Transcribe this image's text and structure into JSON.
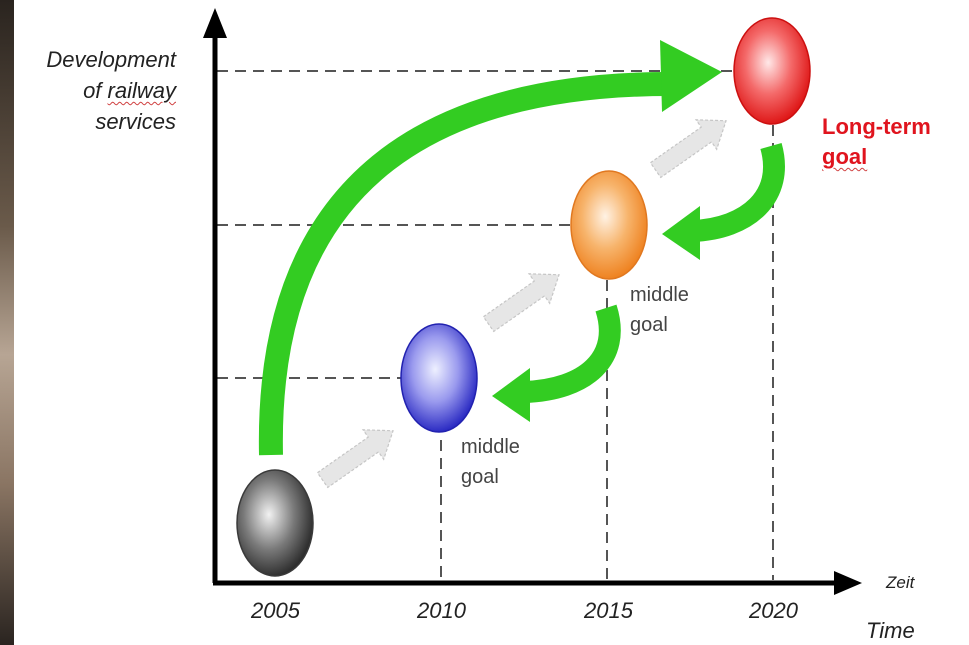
{
  "y_axis_label": [
    "Development",
    "of railway",
    "services"
  ],
  "x_axis_years": [
    "2005",
    "2010",
    "2015",
    "2020"
  ],
  "x_axis_label_de": "Zeit",
  "x_axis_label_en": "Time",
  "middle_goal_1": [
    "middle",
    "goal"
  ],
  "middle_goal_2": [
    "middle",
    "goal"
  ],
  "long_term_goal": [
    "Long-term",
    "goal"
  ],
  "colors": {
    "start_node": "#555555",
    "node_2010": "#3a3ad8",
    "node_2015": "#f5903a",
    "node_2020": "#e81a1a",
    "big_arrow": "#33cc22",
    "step_arrow": "#dddddd",
    "long_term_text": "#e0141e"
  }
}
